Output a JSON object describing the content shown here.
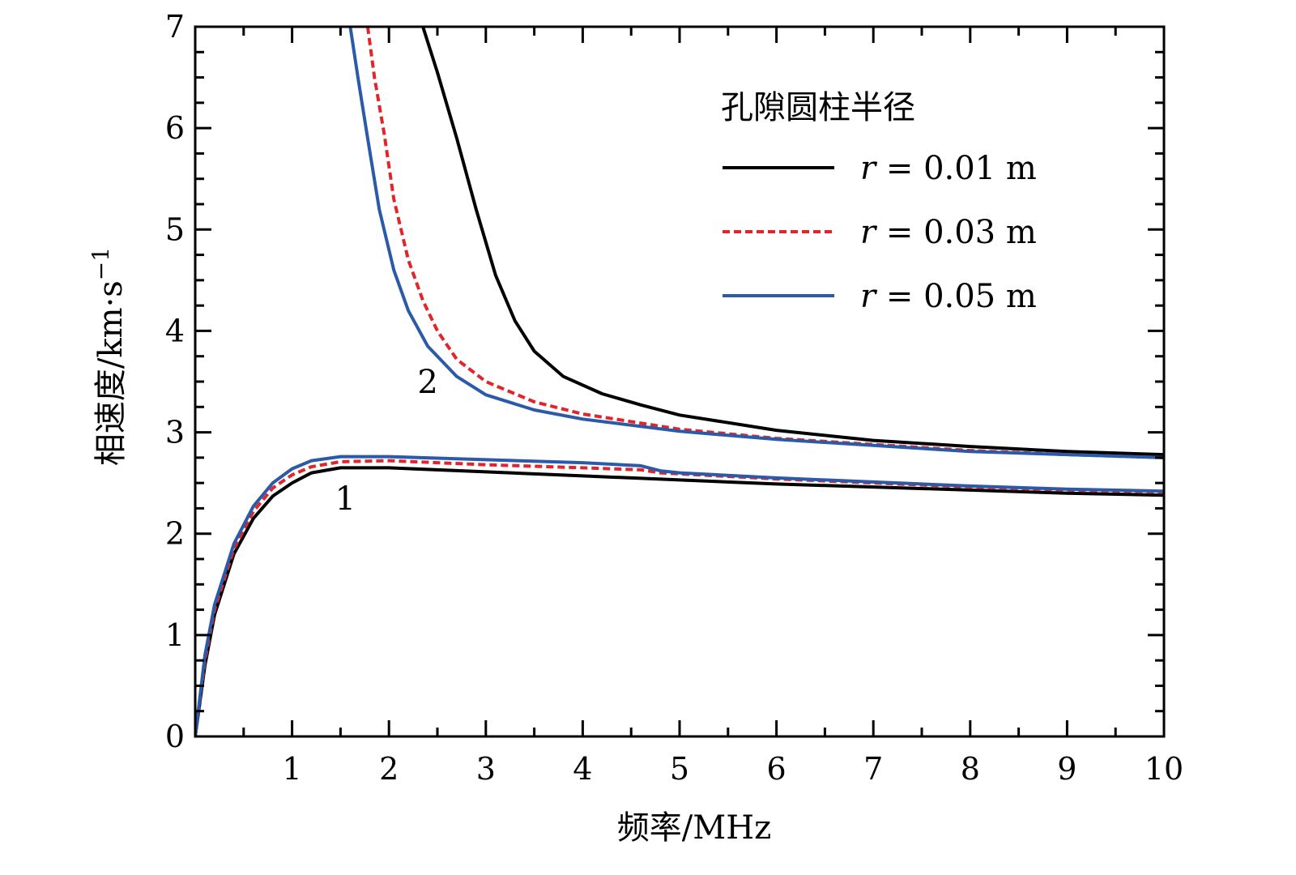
{
  "chart_data": {
    "type": "line",
    "xlabel": "频率/MHz",
    "ylabel": "相速度/km·s",
    "ylabel_sup": "−1",
    "xlim": [
      0,
      10
    ],
    "ylim": [
      0,
      7
    ],
    "x_ticks": [
      "1",
      "2",
      "3",
      "4",
      "5",
      "6",
      "7",
      "8",
      "9",
      "10"
    ],
    "y_ticks": [
      "0",
      "1",
      "2",
      "3",
      "4",
      "5",
      "6",
      "7"
    ],
    "grid": false,
    "legend": {
      "title": "孔隙圆柱半径",
      "placement": "top-right",
      "entries": [
        {
          "prefix": "r",
          "text": " = 0.01 m",
          "color": "#000000",
          "style": "solid"
        },
        {
          "prefix": "r",
          "text": " = 0.03 m",
          "color": "#e0262b",
          "style": "dashed"
        },
        {
          "prefix": "r",
          "text": " = 0.05 m",
          "color": "#2b5aa8",
          "style": "solid"
        }
      ]
    },
    "annotations": [
      {
        "text": "1",
        "x": 1.55,
        "y": 2.35
      },
      {
        "text": "2",
        "x": 2.4,
        "y": 3.5
      }
    ],
    "series": [
      {
        "group": "mode1",
        "color": "#000000",
        "style": "solid",
        "points": [
          [
            0,
            0
          ],
          [
            0.1,
            0.7
          ],
          [
            0.2,
            1.2
          ],
          [
            0.4,
            1.8
          ],
          [
            0.6,
            2.15
          ],
          [
            0.8,
            2.37
          ],
          [
            1.0,
            2.5
          ],
          [
            1.2,
            2.6
          ],
          [
            1.5,
            2.65
          ],
          [
            2.0,
            2.65
          ],
          [
            3.0,
            2.61
          ],
          [
            4.0,
            2.57
          ],
          [
            5.0,
            2.53
          ],
          [
            6.0,
            2.49
          ],
          [
            7.0,
            2.46
          ],
          [
            8.0,
            2.43
          ],
          [
            9.0,
            2.4
          ],
          [
            10.0,
            2.38
          ]
        ]
      },
      {
        "group": "mode1",
        "color": "#e0262b",
        "style": "dashed",
        "points": [
          [
            0,
            0
          ],
          [
            0.1,
            0.75
          ],
          [
            0.2,
            1.25
          ],
          [
            0.4,
            1.85
          ],
          [
            0.6,
            2.22
          ],
          [
            0.8,
            2.45
          ],
          [
            1.0,
            2.58
          ],
          [
            1.2,
            2.66
          ],
          [
            1.5,
            2.71
          ],
          [
            2.0,
            2.72
          ],
          [
            3.0,
            2.68
          ],
          [
            4.0,
            2.65
          ],
          [
            4.6,
            2.63
          ],
          [
            4.8,
            2.6
          ],
          [
            5.0,
            2.59
          ],
          [
            6.0,
            2.54
          ],
          [
            7.0,
            2.5
          ],
          [
            8.0,
            2.46
          ],
          [
            9.0,
            2.43
          ],
          [
            10.0,
            2.41
          ]
        ]
      },
      {
        "group": "mode1",
        "color": "#2b5aa8",
        "style": "solid",
        "points": [
          [
            0,
            0
          ],
          [
            0.1,
            0.8
          ],
          [
            0.2,
            1.3
          ],
          [
            0.4,
            1.9
          ],
          [
            0.6,
            2.27
          ],
          [
            0.8,
            2.5
          ],
          [
            1.0,
            2.64
          ],
          [
            1.2,
            2.72
          ],
          [
            1.5,
            2.76
          ],
          [
            2.0,
            2.76
          ],
          [
            3.0,
            2.73
          ],
          [
            4.0,
            2.7
          ],
          [
            4.6,
            2.67
          ],
          [
            4.8,
            2.62
          ],
          [
            5.0,
            2.6
          ],
          [
            6.0,
            2.55
          ],
          [
            7.0,
            2.51
          ],
          [
            8.0,
            2.47
          ],
          [
            9.0,
            2.44
          ],
          [
            10.0,
            2.42
          ]
        ]
      },
      {
        "group": "mode2",
        "color": "#000000",
        "style": "solid",
        "points": [
          [
            2.35,
            7.0
          ],
          [
            2.5,
            6.55
          ],
          [
            2.7,
            5.9
          ],
          [
            2.9,
            5.2
          ],
          [
            3.1,
            4.55
          ],
          [
            3.3,
            4.1
          ],
          [
            3.5,
            3.8
          ],
          [
            3.8,
            3.55
          ],
          [
            4.2,
            3.38
          ],
          [
            4.6,
            3.27
          ],
          [
            5.0,
            3.17
          ],
          [
            6.0,
            3.02
          ],
          [
            7.0,
            2.92
          ],
          [
            8.0,
            2.86
          ],
          [
            9.0,
            2.81
          ],
          [
            10.0,
            2.78
          ]
        ]
      },
      {
        "group": "mode2",
        "color": "#e0262b",
        "style": "dashed",
        "points": [
          [
            1.78,
            7.0
          ],
          [
            1.85,
            6.5
          ],
          [
            1.95,
            5.95
          ],
          [
            2.05,
            5.3
          ],
          [
            2.2,
            4.7
          ],
          [
            2.35,
            4.3
          ],
          [
            2.5,
            4.0
          ],
          [
            2.7,
            3.72
          ],
          [
            3.0,
            3.5
          ],
          [
            3.5,
            3.3
          ],
          [
            4.0,
            3.18
          ],
          [
            5.0,
            3.03
          ],
          [
            6.0,
            2.94
          ],
          [
            7.0,
            2.88
          ],
          [
            8.0,
            2.82
          ],
          [
            9.0,
            2.78
          ],
          [
            10.0,
            2.75
          ]
        ]
      },
      {
        "group": "mode2",
        "color": "#2b5aa8",
        "style": "solid",
        "points": [
          [
            1.6,
            7.0
          ],
          [
            1.68,
            6.5
          ],
          [
            1.78,
            5.9
          ],
          [
            1.9,
            5.2
          ],
          [
            2.05,
            4.6
          ],
          [
            2.2,
            4.2
          ],
          [
            2.4,
            3.85
          ],
          [
            2.7,
            3.55
          ],
          [
            3.0,
            3.37
          ],
          [
            3.5,
            3.22
          ],
          [
            4.0,
            3.13
          ],
          [
            5.0,
            3.01
          ],
          [
            6.0,
            2.93
          ],
          [
            7.0,
            2.87
          ],
          [
            8.0,
            2.81
          ],
          [
            9.0,
            2.78
          ],
          [
            10.0,
            2.75
          ]
        ]
      }
    ]
  }
}
